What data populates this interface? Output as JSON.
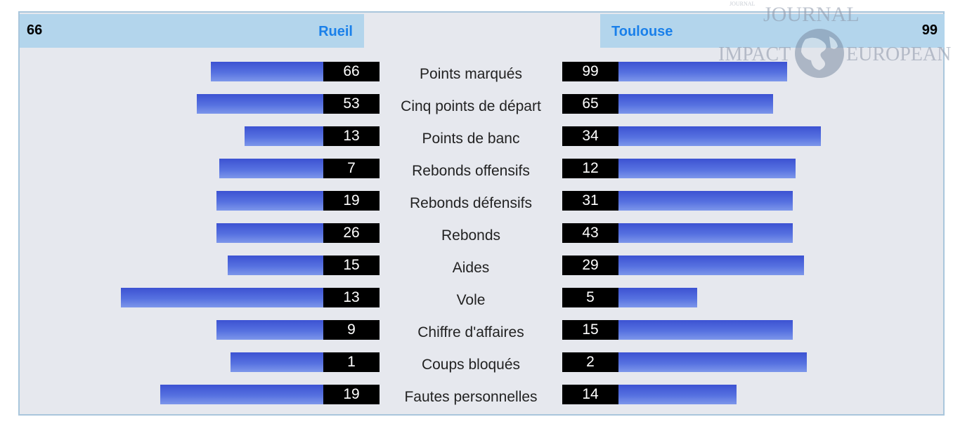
{
  "teams": {
    "left": {
      "name": "Rueil",
      "score": "66"
    },
    "right": {
      "name": "Toulouse",
      "score": "99"
    }
  },
  "chart_data": {
    "type": "bar",
    "orientation": "horizontal-diverging",
    "categories": [
      "Points marqués",
      "Cinq points de départ",
      "Points de banc",
      "Rebonds offensifs",
      "Rebonds défensifs",
      "Rebonds",
      "Aides",
      "Vole",
      "Chiffre d'affaires",
      "Coups bloqués",
      "Fautes personnelles"
    ],
    "series": [
      {
        "name": "Rueil",
        "values": [
          66,
          53,
          13,
          7,
          19,
          26,
          15,
          13,
          9,
          1,
          19
        ]
      },
      {
        "name": "Toulouse",
        "values": [
          99,
          65,
          34,
          12,
          31,
          43,
          29,
          5,
          15,
          2,
          14
        ]
      }
    ],
    "bar_fraction_of_category_total": [
      {
        "left": 0.4,
        "right": 0.6
      },
      {
        "left": 0.45,
        "right": 0.55
      },
      {
        "left": 0.28,
        "right": 0.72
      },
      {
        "left": 0.37,
        "right": 0.63
      },
      {
        "left": 0.38,
        "right": 0.62
      },
      {
        "left": 0.38,
        "right": 0.62
      },
      {
        "left": 0.34,
        "right": 0.66
      },
      {
        "left": 0.72,
        "right": 0.28
      },
      {
        "left": 0.38,
        "right": 0.62
      },
      {
        "left": 0.33,
        "right": 0.67
      },
      {
        "left": 0.58,
        "right": 0.42
      }
    ],
    "colors": {
      "bar": "#4a63dc",
      "value_box": "#000000",
      "header": "#b3d5ec",
      "team_name": "#1a80ea"
    }
  },
  "watermark": {
    "line1": "JOURNAL",
    "line2_left": "IMPACT",
    "line2_right": "EUROPEAN",
    "small": "JOURNAL"
  }
}
